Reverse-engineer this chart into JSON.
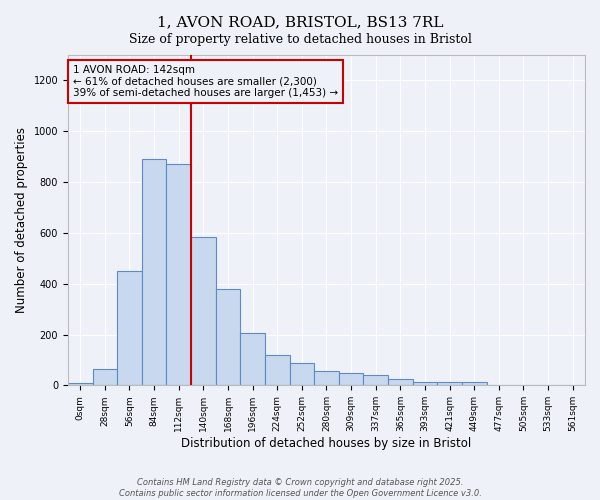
{
  "title_line1": "1, AVON ROAD, BRISTOL, BS13 7RL",
  "title_line2": "Size of property relative to detached houses in Bristol",
  "xlabel": "Distribution of detached houses by size in Bristol",
  "ylabel": "Number of detached properties",
  "bin_labels": [
    "0sqm",
    "28sqm",
    "56sqm",
    "84sqm",
    "112sqm",
    "140sqm",
    "168sqm",
    "196sqm",
    "224sqm",
    "252sqm",
    "280sqm",
    "309sqm",
    "337sqm",
    "365sqm",
    "393sqm",
    "421sqm",
    "449sqm",
    "477sqm",
    "505sqm",
    "533sqm",
    "561sqm"
  ],
  "bar_heights": [
    8,
    65,
    450,
    890,
    870,
    585,
    380,
    205,
    120,
    88,
    55,
    50,
    42,
    25,
    12,
    15,
    12,
    3,
    2,
    1,
    1
  ],
  "bar_color": "#c8d8ee",
  "bar_edge_color": "#5b8cc8",
  "vline_color": "#cc0000",
  "vline_x_index": 5,
  "annotation_title": "1 AVON ROAD: 142sqm",
  "annotation_line1": "← 61% of detached houses are smaller (2,300)",
  "annotation_line2": "39% of semi-detached houses are larger (1,453) →",
  "annotation_box_color": "#cc0000",
  "ylim": [
    0,
    1300
  ],
  "yticks": [
    0,
    200,
    400,
    600,
    800,
    1000,
    1200
  ],
  "footnote1": "Contains HM Land Registry data © Crown copyright and database right 2025.",
  "footnote2": "Contains public sector information licensed under the Open Government Licence v3.0.",
  "bg_color": "#eef2f8",
  "grid_color": "#ffffff",
  "title_fontsize": 11,
  "subtitle_fontsize": 9,
  "xlabel_fontsize": 8.5,
  "ylabel_fontsize": 8.5,
  "tick_fontsize": 6.5,
  "annot_fontsize": 7.5,
  "footnote_fontsize": 6.0
}
